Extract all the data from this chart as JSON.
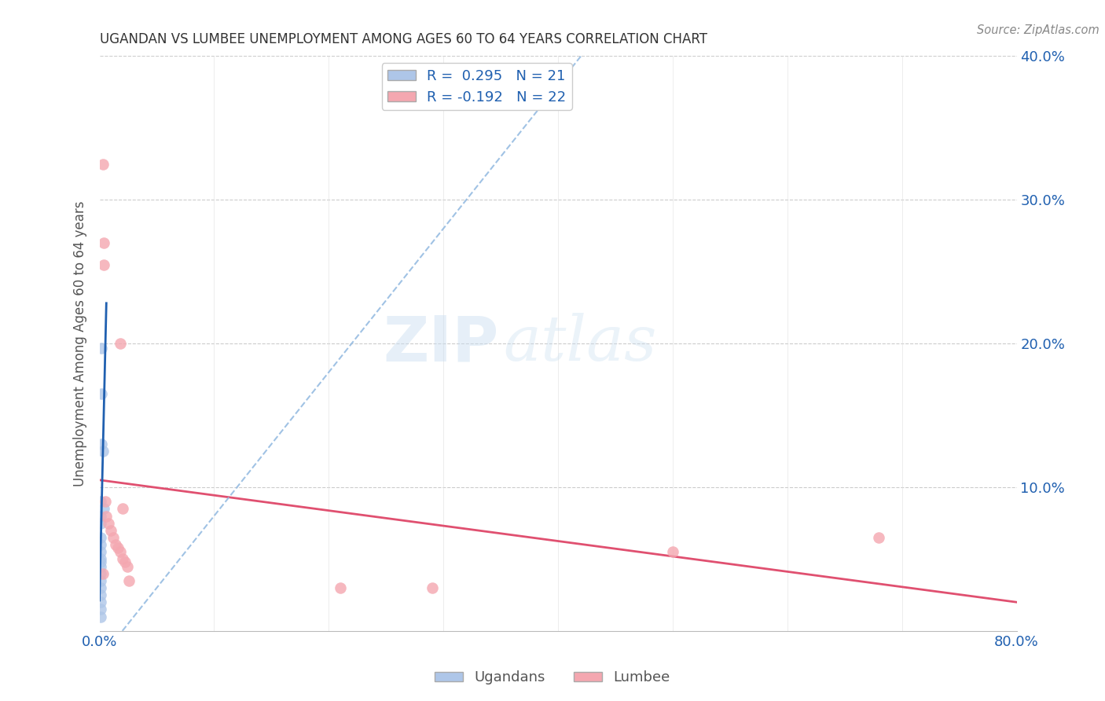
{
  "title": "UGANDAN VS LUMBEE UNEMPLOYMENT AMONG AGES 60 TO 64 YEARS CORRELATION CHART",
  "source": "Source: ZipAtlas.com",
  "ylabel": "Unemployment Among Ages 60 to 64 years",
  "xlim": [
    0,
    0.8
  ],
  "ylim": [
    0,
    0.4
  ],
  "xticks": [
    0.0,
    0.1,
    0.2,
    0.3,
    0.4,
    0.5,
    0.6,
    0.7,
    0.8
  ],
  "yticks": [
    0.0,
    0.1,
    0.2,
    0.3,
    0.4
  ],
  "ugandan_x": [
    0.002,
    0.002,
    0.002,
    0.003,
    0.004,
    0.001,
    0.001,
    0.001,
    0.001,
    0.001,
    0.001,
    0.001,
    0.001,
    0.001,
    0.001,
    0.001,
    0.001,
    0.001,
    0.001,
    0.001,
    0.001
  ],
  "ugandan_y": [
    0.197,
    0.165,
    0.13,
    0.125,
    0.085,
    0.09,
    0.08,
    0.075,
    0.065,
    0.06,
    0.055,
    0.05,
    0.048,
    0.045,
    0.04,
    0.035,
    0.03,
    0.025,
    0.02,
    0.015,
    0.01
  ],
  "lumbee_x": [
    0.003,
    0.004,
    0.004,
    0.018,
    0.02,
    0.005,
    0.006,
    0.008,
    0.01,
    0.012,
    0.014,
    0.016,
    0.018,
    0.02,
    0.022,
    0.024,
    0.026,
    0.29,
    0.5,
    0.68,
    0.21,
    0.003
  ],
  "lumbee_y": [
    0.325,
    0.27,
    0.255,
    0.2,
    0.085,
    0.09,
    0.08,
    0.075,
    0.07,
    0.065,
    0.06,
    0.058,
    0.055,
    0.05,
    0.048,
    0.045,
    0.035,
    0.03,
    0.055,
    0.065,
    0.03,
    0.04
  ],
  "ugandan_color": "#aec6e8",
  "lumbee_color": "#f4a7b0",
  "ugandan_line_color": "#2060b0",
  "lumbee_line_color": "#e05070",
  "R_ugandan": 0.295,
  "N_ugandan": 21,
  "R_lumbee": -0.192,
  "N_lumbee": 22,
  "marker_size": 110,
  "watermark_zip": "ZIP",
  "watermark_atlas": "atlas",
  "background_color": "#ffffff",
  "grid_color": "#cccccc",
  "title_color": "#333333",
  "axis_label_color": "#555555",
  "tick_color": "#2060b0"
}
